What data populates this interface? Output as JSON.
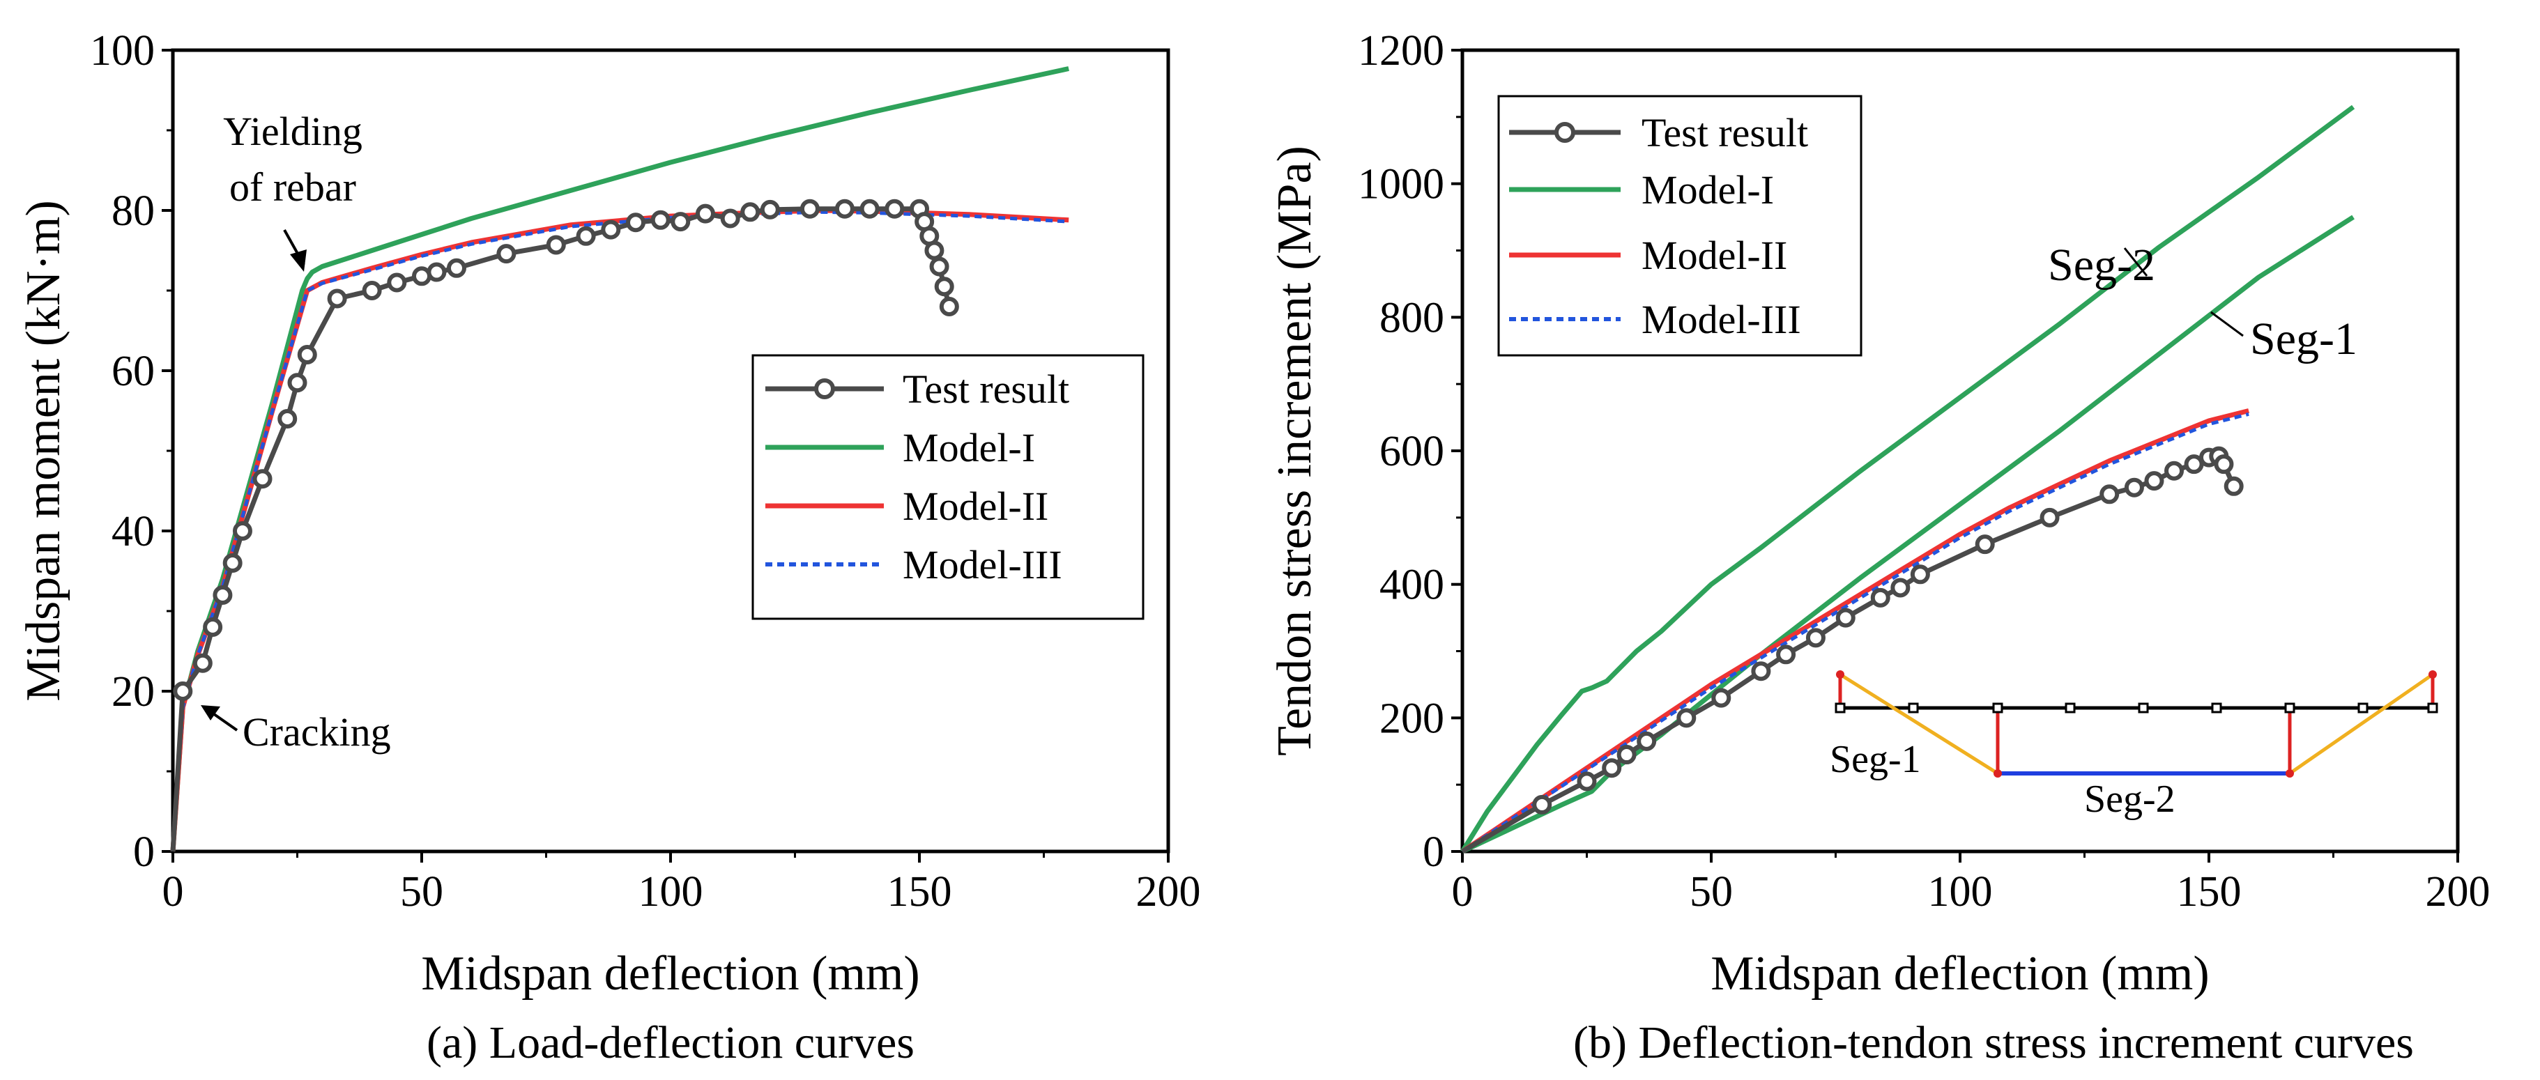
{
  "colors": {
    "test": "#4a4a4a",
    "model1": "#2ea25a",
    "model2": "#ee3333",
    "model3": "#2255dd",
    "axis": "#000000",
    "seg_red": "#dd2222",
    "seg_orange": "#f0b020",
    "seg_blue": "#1f3fe0"
  },
  "chart_data": [
    {
      "type": "line",
      "caption": "(a) Load-deflection curves",
      "xlabel": "Midspan deflection (mm)",
      "ylabel": "Midspan moment (kN·m)",
      "xlim": [
        0,
        200
      ],
      "ylim": [
        0,
        100
      ],
      "xticks": [
        0,
        50,
        100,
        150,
        200
      ],
      "yticks": [
        0,
        20,
        40,
        60,
        80,
        100
      ],
      "xtick_labels": [
        "0",
        "50",
        "100",
        "150",
        "200"
      ],
      "ytick_labels": [
        "0",
        "20",
        "40",
        "60",
        "80",
        "100"
      ],
      "legend": {
        "position": "right-middle",
        "entries": [
          "Test result",
          "Model-I",
          "Model-II",
          "Model-III"
        ]
      },
      "annotations": [
        {
          "name": "yielding",
          "lines": [
            "Yielding",
            "of rebar"
          ],
          "x": 27,
          "y": 72
        },
        {
          "name": "cracking",
          "lines": [
            "Cracking"
          ],
          "x": 6,
          "y": 18.5
        }
      ],
      "series": [
        {
          "name": "Test result",
          "key": "test",
          "marker": "circle",
          "style": "solid",
          "x": [
            0,
            2,
            6,
            8,
            10,
            12,
            14,
            18,
            23,
            25,
            27,
            33,
            40,
            45,
            50,
            53,
            57,
            67,
            77,
            83,
            88,
            93,
            98,
            102,
            107,
            112,
            116,
            120,
            128,
            135,
            140,
            145,
            150,
            151,
            152,
            153,
            154,
            155,
            156
          ],
          "y": [
            0,
            20,
            23.5,
            28,
            32,
            36,
            40,
            46.5,
            54,
            58.5,
            62,
            69,
            70,
            71,
            71.8,
            72.3,
            72.8,
            74.6,
            75.7,
            76.8,
            77.6,
            78.5,
            78.8,
            78.6,
            79.6,
            79,
            79.8,
            80.1,
            80.2,
            80.2,
            80.2,
            80.2,
            80.2,
            78.6,
            76.8,
            75,
            73,
            70.5,
            68
          ]
        },
        {
          "name": "Model-I",
          "key": "model1",
          "marker": "none",
          "style": "solid",
          "x": [
            0,
            2,
            5,
            10,
            15,
            20,
            26,
            27,
            28,
            30,
            40,
            50,
            60,
            80,
            100,
            120,
            140,
            160,
            180
          ],
          "y": [
            0,
            18,
            25,
            34,
            45,
            56,
            70,
            71.5,
            72.3,
            73,
            75,
            77,
            79,
            82.5,
            86,
            89.2,
            92.2,
            95,
            97.7
          ]
        },
        {
          "name": "Model-II",
          "key": "model2",
          "marker": "none",
          "style": "solid",
          "x": [
            0,
            2,
            5,
            10,
            15,
            20,
            27,
            30,
            40,
            50,
            60,
            80,
            100,
            120,
            130,
            140,
            160,
            180
          ],
          "y": [
            0,
            18,
            24.5,
            33,
            44,
            55,
            70,
            71,
            72.8,
            74.5,
            76,
            78.2,
            79.3,
            79.8,
            80,
            79.9,
            79.5,
            78.8
          ]
        },
        {
          "name": "Model-III",
          "key": "model3",
          "marker": "none",
          "style": "dashed",
          "x": [
            0,
            2,
            5,
            10,
            15,
            20,
            27,
            30,
            40,
            50,
            60,
            80,
            100,
            120,
            130,
            140,
            160,
            180
          ],
          "y": [
            0,
            18,
            24.5,
            33,
            44,
            55,
            70,
            70.9,
            72.6,
            74.3,
            75.8,
            78,
            79.1,
            79.6,
            79.8,
            79.7,
            79.3,
            78.6
          ]
        }
      ]
    },
    {
      "type": "line",
      "caption": "(b) Deflection-tendon stress increment curves",
      "xlabel": "Midspan deflection (mm)",
      "ylabel": "Tendon stress increment (MPa)",
      "xlim": [
        0,
        200
      ],
      "ylim": [
        0,
        1200
      ],
      "xticks": [
        0,
        50,
        100,
        150,
        200
      ],
      "yticks": [
        0,
        200,
        400,
        600,
        800,
        1000,
        1200
      ],
      "xtick_labels": [
        "0",
        "50",
        "100",
        "150",
        "200"
      ],
      "ytick_labels": [
        "0",
        "200",
        "400",
        "600",
        "800",
        "1000",
        "1200"
      ],
      "legend": {
        "position": "top-left",
        "entries": [
          "Test result",
          "Model-I",
          "Model-II",
          "Model-III"
        ]
      },
      "annotations": [
        {
          "name": "seg2-label",
          "lines": [
            "Seg-2"
          ],
          "x": 138,
          "y": 930
        },
        {
          "name": "seg1-label",
          "lines": [
            "Seg-1"
          ],
          "x": 158,
          "y": 770
        }
      ],
      "inset": {
        "labels": [
          "Seg-1",
          "Seg-2"
        ]
      },
      "series": [
        {
          "name": "Test result",
          "key": "test",
          "marker": "circle",
          "style": "solid",
          "x": [
            0,
            16,
            25,
            30,
            33,
            37,
            45,
            52,
            60,
            65,
            71,
            77,
            84,
            88,
            92,
            105,
            118,
            130,
            135,
            139,
            143,
            147,
            150,
            152,
            153,
            155
          ],
          "y": [
            0,
            70,
            105,
            125,
            145,
            165,
            200,
            230,
            270,
            295,
            320,
            350,
            380,
            395,
            415,
            460,
            500,
            535,
            545,
            555,
            570,
            580,
            590,
            592,
            580,
            547
          ]
        },
        {
          "name": "Model-I Seg-2",
          "key": "model1",
          "marker": "none",
          "style": "solid",
          "x": [
            0,
            5,
            10,
            15,
            20,
            24,
            26,
            29,
            35,
            40,
            50,
            60,
            80,
            100,
            120,
            140,
            160,
            179
          ],
          "y": [
            0,
            60,
            110,
            160,
            205,
            240,
            245,
            255,
            300,
            330,
            400,
            455,
            570,
            680,
            790,
            905,
            1010,
            1115
          ]
        },
        {
          "name": "Model-I Seg-1",
          "key": "model1",
          "marker": "none",
          "style": "solid",
          "x": [
            0,
            10,
            20,
            26,
            30,
            40,
            50,
            60,
            80,
            100,
            120,
            140,
            160,
            179
          ],
          "y": [
            0,
            35,
            70,
            90,
            120,
            175,
            235,
            295,
            410,
            520,
            630,
            745,
            860,
            950
          ]
        },
        {
          "name": "Model-II",
          "key": "model2",
          "marker": "none",
          "style": "solid",
          "x": [
            0,
            10,
            20,
            30,
            40,
            50,
            60,
            70,
            80,
            90,
            100,
            110,
            120,
            130,
            140,
            150,
            158
          ],
          "y": [
            0,
            50,
            100,
            150,
            200,
            250,
            295,
            340,
            385,
            430,
            475,
            515,
            550,
            585,
            615,
            645,
            660
          ]
        },
        {
          "name": "Model-III",
          "key": "model3",
          "marker": "none",
          "style": "dashed",
          "x": [
            0,
            10,
            20,
            30,
            40,
            50,
            60,
            70,
            80,
            90,
            100,
            110,
            120,
            130,
            140,
            150,
            158
          ],
          "y": [
            0,
            49,
            98,
            147,
            196,
            245,
            290,
            335,
            380,
            425,
            470,
            510,
            545,
            580,
            610,
            640,
            655
          ]
        }
      ]
    }
  ]
}
